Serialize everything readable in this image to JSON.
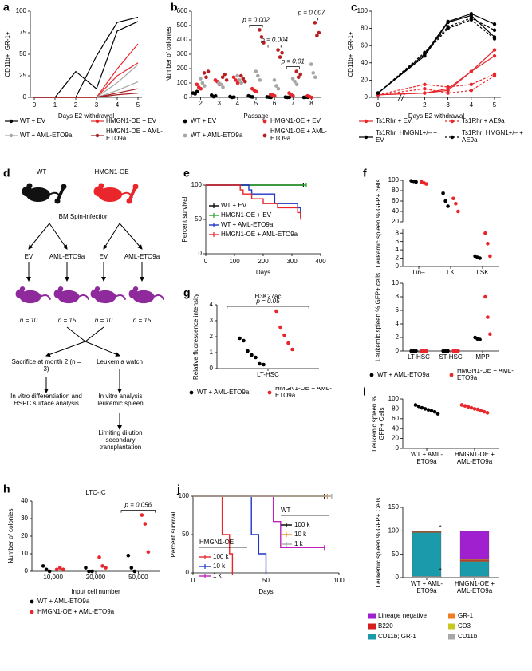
{
  "chart_data": [
    {
      "panel": "a",
      "type": "line",
      "ylabel": "CD11b+, GR-1+",
      "xlabel": "Days E2 withdrawal",
      "x": [
        0,
        1,
        2,
        3,
        4,
        5
      ],
      "xlim": [
        0,
        5
      ],
      "xticks": [
        0,
        1,
        2,
        3,
        4,
        5
      ],
      "ylim": [
        0,
        100
      ],
      "yticks": [
        0,
        25,
        50,
        75,
        100
      ],
      "markers": false,
      "series": [
        {
          "name": "WT + EV",
          "color": "#000000",
          "lines": [
            [
              0,
              0,
              30,
              10,
              77,
              88
            ],
            [
              0,
              0,
              0,
              48,
              87,
              93
            ]
          ]
        },
        {
          "name": "HMGN1-OE + EV",
          "color": "#e8262b",
          "lines": [
            [
              0,
              0,
              0,
              0,
              33,
              62
            ],
            [
              0,
              0,
              0,
              0,
              25,
              40
            ]
          ]
        },
        {
          "name": "WT + AML-ETO9a",
          "color": "#a6a6a6",
          "lines": [
            [
              0,
              0,
              0,
              0,
              8,
              18
            ],
            [
              0,
              0,
              0,
              0,
              17,
              38
            ]
          ]
        },
        {
          "name": "HMGN1-OE + AML-ETO9a",
          "color": "#a31c1f",
          "lines": [
            [
              0,
              0,
              0,
              0,
              3,
              5
            ],
            [
              0,
              0,
              0,
              0,
              5,
              10
            ]
          ]
        }
      ]
    },
    {
      "panel": "b",
      "type": "strip",
      "ylabel": "Number of colonies",
      "xlabel": "Passage",
      "categories": [
        "2",
        "3",
        "4",
        "5",
        "6",
        "7",
        "8"
      ],
      "ylim": [
        0,
        600
      ],
      "yticks": [
        0,
        100,
        200,
        300,
        400,
        500,
        600
      ],
      "series": [
        {
          "name": "WT + EV",
          "color": "#000000",
          "values": [
            [
              30,
              25,
              40
            ],
            [
              15,
              5,
              10
            ],
            [
              5,
              0,
              2
            ],
            [
              10,
              5,
              3
            ],
            [
              3,
              2,
              0
            ],
            [
              2,
              0,
              1
            ],
            [
              0,
              2,
              1
            ]
          ]
        },
        {
          "name": "HMGN1-OE + EV",
          "color": "#e8262b",
          "values": [
            [
              90,
              70,
              60
            ],
            [
              120,
              110,
              90
            ],
            [
              140,
              120,
              100
            ],
            [
              60,
              50,
              40
            ],
            [
              20,
              15,
              10
            ],
            [
              30,
              20,
              10
            ],
            [
              10,
              5,
              0
            ]
          ]
        },
        {
          "name": "WT + AML-ETO9a",
          "color": "#a6a6a6",
          "values": [
            [
              130,
              100,
              80
            ],
            [
              100,
              90,
              70
            ],
            [
              150,
              120,
              100
            ],
            [
              180,
              150,
              120
            ],
            [
              120,
              80,
              60
            ],
            [
              130,
              110,
              90
            ],
            [
              230,
              170,
              140
            ]
          ]
        },
        {
          "name": "HMGN1-OE + AML-ETO9a",
          "color": "#b81e22",
          "values": [
            [
              170,
              140,
              180
            ],
            [
              140,
              160,
              120
            ],
            [
              150,
              130,
              110
            ],
            [
              470,
              420,
              380
            ],
            [
              330,
              280,
              310
            ],
            [
              180,
              140,
              160
            ],
            [
              520,
              430,
              450
            ]
          ]
        }
      ],
      "annotations": [
        {
          "text": "p = 0.002",
          "category": "5"
        },
        {
          "text": "p = 0.004",
          "category": "6"
        },
        {
          "text": "p = 0.01",
          "category": "7"
        },
        {
          "text": "p = 0.007",
          "category": "8"
        }
      ]
    },
    {
      "panel": "c",
      "type": "line",
      "ylabel": "CD11b+, GR-1+",
      "xlabel": "Days E2 withdrawal",
      "x": [
        0,
        2,
        3,
        4,
        5
      ],
      "xlim": [
        0,
        5
      ],
      "xticks": [
        0,
        2,
        3,
        4,
        5
      ],
      "xbreak": true,
      "ylim": [
        0,
        100
      ],
      "yticks": [
        0,
        20,
        40,
        60,
        80,
        100
      ],
      "markers": true,
      "series": [
        {
          "name": "Ts1Rhr + EV",
          "color": "#e8262b",
          "dash": false,
          "lines": [
            [
              3,
              5,
              10,
              30,
              55
            ],
            [
              3,
              5,
              8,
              30,
              48
            ]
          ]
        },
        {
          "name": "Ts1Rhr + AE9a",
          "color": "#e8262b",
          "dash": true,
          "lines": [
            [
              3,
              15,
              12,
              15,
              27
            ],
            [
              3,
              10,
              5,
              8,
              25
            ]
          ]
        },
        {
          "name": "Ts1Rhr_HMGN1+/– + EV",
          "color": "#000000",
          "dash": false,
          "lines": [
            [
              5,
              50,
              88,
              97,
              85
            ],
            [
              5,
              48,
              87,
              95,
              70
            ]
          ]
        },
        {
          "name": "Ts1Rhr_HMGN1+/– + AE9a",
          "color": "#000000",
          "dash": true,
          "lines": [
            [
              5,
              52,
              82,
              92,
              78
            ],
            [
              5,
              50,
              80,
              90,
              68
            ]
          ]
        }
      ]
    },
    {
      "panel": "e",
      "type": "survival",
      "ylabel": "Percent survival",
      "xlabel": "Days",
      "xlim": [
        0,
        400
      ],
      "xticks": [
        0,
        100,
        200,
        300,
        400
      ],
      "ylim": [
        0,
        100
      ],
      "yticks": [
        0,
        50,
        100
      ],
      "series": [
        {
          "name": "WT + EV",
          "color": "#000000",
          "x": [
            0,
            340
          ],
          "values": [
            100,
            100
          ]
        },
        {
          "name": "HMGN1-OE + EV",
          "color": "#2ca02c",
          "x": [
            0,
            350
          ],
          "values": [
            100,
            100
          ]
        },
        {
          "name": "WT + AML-ETO9a",
          "color": "#1f35c4",
          "x": [
            0,
            150,
            160,
            240,
            320,
            330
          ],
          "values": [
            100,
            93,
            87,
            73,
            67,
            60
          ]
        },
        {
          "name": "HMGN1-OE + AML-ETO9a",
          "color": "#e8262b",
          "x": [
            0,
            120,
            130,
            160,
            200,
            250,
            320,
            330
          ],
          "values": [
            100,
            93,
            87,
            80,
            73,
            67,
            60,
            53
          ]
        }
      ]
    },
    {
      "panel": "f",
      "type": "strip",
      "ylabel": "Leukemic spleen % GFP+ cells",
      "categories": [
        "Lin–",
        "LK",
        "LSK"
      ],
      "yaxes": [
        {
          "ylim": [
            0,
            9
          ],
          "yticks": [
            0,
            2,
            4,
            6,
            8
          ]
        },
        {
          "ylim": [
            20,
            100
          ],
          "yticks": [
            20,
            40,
            60,
            80,
            100
          ]
        }
      ],
      "series": [
        {
          "color": "#000000",
          "values": [
            [
              99,
              98,
              97
            ],
            [
              75,
              60,
              50
            ],
            [
              2.5,
              2.2,
              2
            ]
          ]
        },
        {
          "color": "#e8262b",
          "values": [
            [
              97,
              95,
              93
            ],
            [
              65,
              55,
              40
            ],
            [
              8,
              5.5,
              2.5
            ]
          ]
        }
      ]
    },
    {
      "type": "strip",
      "ylabel": "Leukemic spleen % GFP+ cells",
      "categories": [
        "LT-HSC",
        "ST-HSC",
        "MPP"
      ],
      "ylim": [
        0,
        10
      ],
      "yticks": [
        0,
        2,
        4,
        6,
        8,
        10
      ],
      "series": [
        {
          "name": "WT + AML-ETO9a",
          "color": "#000000",
          "values": [
            [
              0,
              0,
              0
            ],
            [
              0,
              0,
              0
            ],
            [
              2,
              1.8,
              1.7
            ]
          ]
        },
        {
          "name": "HMGN1-OE + AML-ETO9a",
          "color": "#e8262b",
          "values": [
            [
              0,
              0,
              0
            ],
            [
              0,
              0,
              0
            ],
            [
              8,
              5,
              2.5
            ]
          ]
        }
      ]
    },
    {
      "panel": "g",
      "type": "strip",
      "title": "H3K27ac",
      "ylabel": "Relative fluorescence intensity",
      "categories": [
        "LT-HSC"
      ],
      "ylim": [
        0,
        4
      ],
      "yticks": [
        0,
        1,
        2,
        3,
        4
      ],
      "series": [
        {
          "name": "WT + AML-ETO9a",
          "color": "#000000",
          "values": [
            [
              1.9,
              1.75,
              1.1,
              0.85,
              0.7,
              0.3,
              0.25
            ]
          ]
        },
        {
          "name": "HMGN1-OE + AML-ETO9a",
          "color": "#e8262b",
          "values": [
            [
              3.6,
              2.6,
              2.1,
              1.6,
              1.2
            ]
          ]
        }
      ],
      "annotations": [
        {
          "text": "p = 0.05",
          "category": "LT-HSC"
        }
      ]
    },
    {
      "panel": "h",
      "type": "strip",
      "title": "LTC-IC",
      "ylabel": "Number of colonies",
      "xlabel": "Input cell number",
      "categories": [
        "10,000",
        "20,000",
        "50,000"
      ],
      "ylim": [
        0,
        40
      ],
      "yticks": [
        0,
        10,
        20,
        30,
        40
      ],
      "series": [
        {
          "name": "WT + AML-ETO9a",
          "color": "#000000",
          "values": [
            [
              3,
              1,
              0
            ],
            [
              2,
              0,
              0
            ],
            [
              9,
              2,
              0
            ]
          ]
        },
        {
          "name": "HMGN1-OE + AML-ETO9a",
          "color": "#e8262b",
          "values": [
            [
              1,
              2,
              1
            ],
            [
              8,
              3,
              2
            ],
            [
              32,
              27,
              11
            ]
          ]
        }
      ],
      "annotations": [
        {
          "text": "p = 0.056",
          "category": "50,000"
        }
      ]
    },
    {
      "panel": "i",
      "type": "strip",
      "ylabel": "Leukemic spleen % GFP+ Cells",
      "dodge": false,
      "categories": [
        "WT + AML-ETO9a",
        "HMGN1-OE + AML-ETO9a"
      ],
      "ylim": [
        0,
        100
      ],
      "yticks": [
        0,
        20,
        40,
        60,
        80,
        100
      ],
      "series": [
        {
          "color": "#000000",
          "values": [
            [
              88,
              85,
              82,
              80,
              78,
              76,
              74,
              70
            ],
            []
          ]
        },
        {
          "color": "#e8262b",
          "values": [
            [],
            [
              88,
              86,
              84,
              82,
              80,
              79,
              76,
              74,
              72
            ]
          ]
        }
      ]
    },
    {
      "type": "stacked_bar",
      "ylabel": "Leukemic spleen % GFP+ Cells",
      "categories": [
        "WT + AML-ETO9a",
        "HMGN1-OE + AML-ETO9a"
      ],
      "ylim": [
        0,
        150
      ],
      "yticks": [
        0,
        50,
        100,
        150
      ],
      "series": [
        {
          "name": "CD11b",
          "color": "#a8a8a8",
          "values": [
            3,
            3
          ]
        },
        {
          "name": "CD11b; GR-1",
          "color": "#1a9aaa",
          "values": [
            93,
            31
          ]
        },
        {
          "name": "CD3",
          "color": "#c8c820",
          "values": [
            1,
            1
          ]
        },
        {
          "name": "B220",
          "color": "#d62020",
          "values": [
            1,
            2
          ]
        },
        {
          "name": "GR-1",
          "color": "#f07d20",
          "values": [
            1,
            2
          ]
        },
        {
          "name": "Lineage negative",
          "color": "#a020d0",
          "values": [
            1,
            60
          ]
        }
      ],
      "annotations": [
        {
          "text": "*",
          "color": "#a020d0"
        },
        {
          "text": "*",
          "color": "#1a9aaa"
        }
      ]
    },
    {
      "panel": "j",
      "type": "survival",
      "ylabel": "Percent survival",
      "xlabel": "Days",
      "xlim": [
        0,
        100
      ],
      "xticks": [
        0,
        50,
        100
      ],
      "ylim": [
        0,
        100
      ],
      "yticks": [
        0,
        50,
        100
      ],
      "groups": [
        {
          "name": "HMGN1-OE",
          "series": [
            {
              "name": "100 k",
              "color": "#e8262b",
              "x": [
                0,
                20,
                25,
                27
              ],
              "values": [
                100,
                50,
                25,
                0
              ]
            },
            {
              "name": "10 k",
              "color": "#1f35c4",
              "x": [
                0,
                40,
                45,
                50
              ],
              "values": [
                100,
                50,
                25,
                0
              ]
            },
            {
              "name": "1 k",
              "color": "#c020c0",
              "x": [
                0,
                55,
                60,
                90
              ],
              "values": [
                100,
                67,
                33,
                33
              ]
            }
          ]
        },
        {
          "name": "WT",
          "series": [
            {
              "name": "100 k",
              "color": "#000000",
              "x": [
                0,
                90
              ],
              "values": [
                100,
                100
              ]
            },
            {
              "name": "10 k",
              "color": "#f08a20",
              "x": [
                0,
                92
              ],
              "values": [
                100,
                100
              ]
            },
            {
              "name": "1 k",
              "color": "#a6a6a6",
              "x": [
                0,
                95
              ],
              "values": [
                100,
                100
              ]
            }
          ]
        }
      ]
    }
  ],
  "diagram": {
    "panel": "d",
    "wt": "WT",
    "oe": "HMGN1-OE",
    "infection": "BM Spin-infection",
    "arms": [
      {
        "vector": "EV",
        "n": "n = 10"
      },
      {
        "vector": "AML-ETO9a",
        "n": "n = 15"
      },
      {
        "vector": "EV",
        "n": "n = 10"
      },
      {
        "vector": "AML-ETO9a",
        "n": "n = 15"
      }
    ],
    "branches": [
      {
        "title": "Sacrifice at month 2 (n = 3)",
        "steps": [
          "In vitro differentiation and HSPC surface analysis"
        ]
      },
      {
        "title": "Leukemia watch",
        "steps": [
          "In vitro analysis leukemic spleen",
          "Limiting dilution secondary transplantation"
        ]
      }
    ]
  }
}
